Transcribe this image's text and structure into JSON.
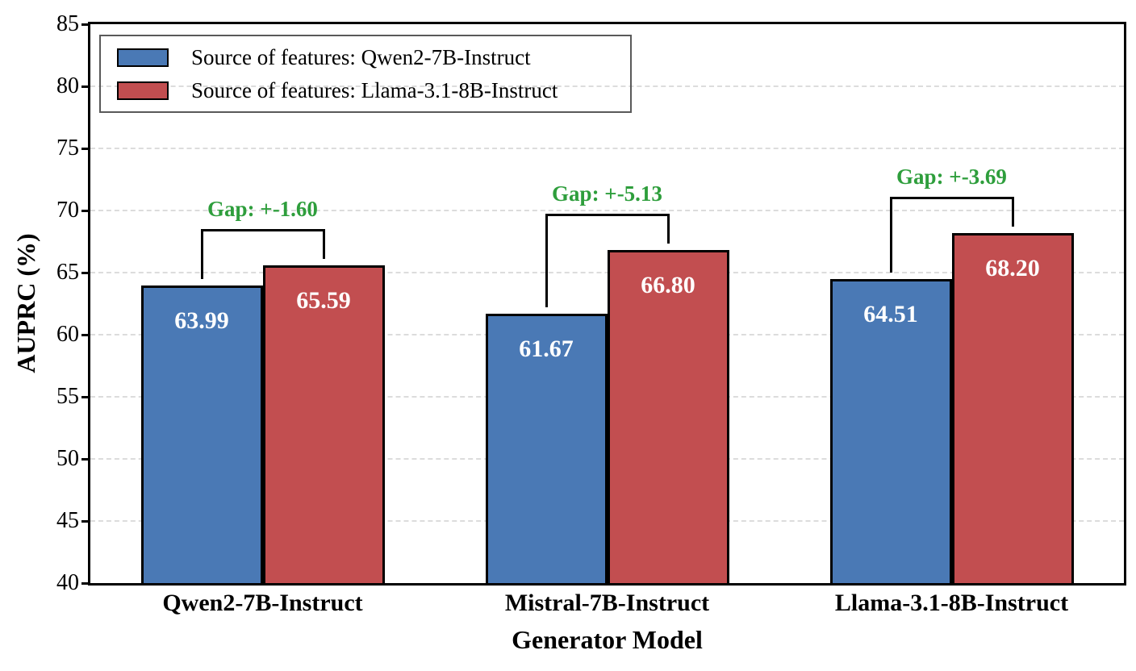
{
  "chart_data": {
    "type": "bar",
    "title": "",
    "xlabel": "Generator Model",
    "ylabel": "AUPRC (%)",
    "ylim": [
      40,
      85
    ],
    "yticks": [
      40,
      45,
      50,
      55,
      60,
      65,
      70,
      75,
      80,
      85
    ],
    "grid": "horizontal-dashed",
    "legend_position": "upper-left",
    "categories": [
      "Qwen2-7B-Instruct",
      "Mistral-7B-Instruct",
      "Llama-3.1-8B-Instruct"
    ],
    "series": [
      {
        "name": "Source of features: Qwen2-7B-Instruct",
        "color": "#4A79B5",
        "values": [
          63.99,
          61.67,
          64.51
        ],
        "value_labels": [
          "63.99",
          "61.67",
          "64.51"
        ]
      },
      {
        "name": "Source of features: Llama-3.1-8B-Instruct",
        "color": "#C24E50",
        "values": [
          65.59,
          66.8,
          68.2
        ],
        "value_labels": [
          "65.59",
          "66.80",
          "68.20"
        ]
      }
    ],
    "annotations": [
      {
        "label": "Gap: +-1.60"
      },
      {
        "label": "Gap: +-5.13"
      },
      {
        "label": "Gap: +-3.69"
      }
    ],
    "colors": {
      "bar_edge": "#000000",
      "value_text": "#ffffff",
      "gap_text": "#2E9E3C",
      "grid": "#dcdcdc",
      "axis": "#000000"
    }
  }
}
